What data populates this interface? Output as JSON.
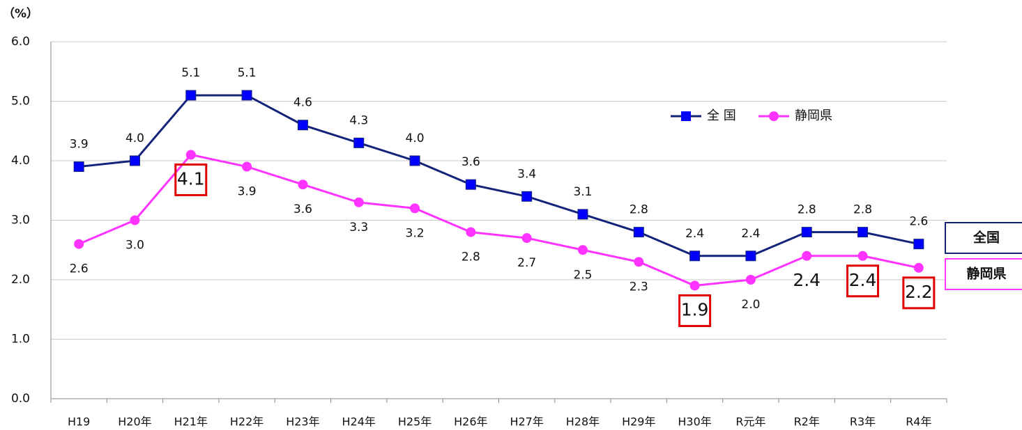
{
  "chart_data": {
    "type": "line",
    "y_unit_label": "（%）",
    "categories": [
      "H19",
      "H20年",
      "H21年",
      "H22年",
      "H23年",
      "H24年",
      "H25年",
      "H26年",
      "H27年",
      "H28年",
      "H29年",
      "H30年",
      "R元年",
      "R2年",
      "R3年",
      "R4年"
    ],
    "series": [
      {
        "name": "全 国",
        "color": "#14237a",
        "marker_color": "#0000ff",
        "marker": "square",
        "label_side": "above",
        "values": [
          3.9,
          4.0,
          5.1,
          5.1,
          4.6,
          4.3,
          4.0,
          3.6,
          3.4,
          3.1,
          2.8,
          2.4,
          2.4,
          2.8,
          2.8,
          2.6
        ],
        "value_labels": [
          "3.9",
          "4.0",
          "5.1",
          "5.1",
          "4.6",
          "4.3",
          "4.0",
          "3.6",
          "3.4",
          "3.1",
          "2.8",
          "2.4",
          "2.4",
          "2.8",
          "2.8",
          "2.6"
        ]
      },
      {
        "name": "静岡県",
        "color": "#ff33ff",
        "marker_color": "#ff33ff",
        "marker": "circle",
        "label_side": "below",
        "values": [
          2.6,
          3.0,
          4.1,
          3.9,
          3.6,
          3.3,
          3.2,
          2.8,
          2.7,
          2.5,
          2.3,
          1.9,
          2.0,
          2.4,
          2.4,
          2.2
        ],
        "value_labels": [
          "2.6",
          "3.0",
          "4.1",
          "3.9",
          "3.6",
          "3.3",
          "3.2",
          "2.8",
          "2.7",
          "2.5",
          "2.3",
          "1.9",
          "2.0",
          "2.4",
          "2.4",
          "2.2"
        ],
        "emphasized_labels": [
          2,
          11,
          13,
          14,
          15
        ],
        "boxed_labels": [
          2,
          11,
          14,
          15
        ],
        "box_color": "#e00000"
      }
    ],
    "end_labels": [
      "全国",
      "静岡県"
    ],
    "ylim": [
      0,
      6
    ],
    "yticks": [
      {
        "value": 0,
        "label": "0.0"
      },
      {
        "value": 1,
        "label": "1.0"
      },
      {
        "value": 2,
        "label": "2.0"
      },
      {
        "value": 3,
        "label": "3.0"
      },
      {
        "value": 4,
        "label": "4.0"
      },
      {
        "value": 5,
        "label": "5.0"
      },
      {
        "value": 6,
        "label": "6.0"
      }
    ],
    "grid": true,
    "legend": "upper right"
  }
}
